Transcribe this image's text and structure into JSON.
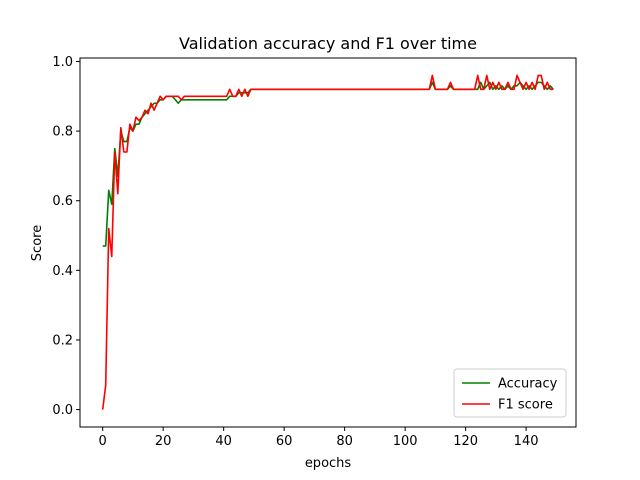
{
  "chart_data": {
    "type": "line",
    "title": "Validation accuracy and F1 over time",
    "xlabel": "epochs",
    "ylabel": "Score",
    "xlim": [
      -7.5,
      156.5
    ],
    "ylim": [
      -0.05,
      1.01
    ],
    "xticks": [
      0,
      20,
      40,
      60,
      80,
      100,
      120,
      140
    ],
    "yticks": [
      0.0,
      0.2,
      0.4,
      0.6,
      0.8,
      1.0
    ],
    "grid": false,
    "legend": "lower-right",
    "series": [
      {
        "name": "Accuracy",
        "color": "#008000",
        "points": [
          [
            0,
            0.47
          ],
          [
            1,
            0.47
          ],
          [
            2,
            0.63
          ],
          [
            3,
            0.59
          ],
          [
            4,
            0.75
          ],
          [
            5,
            0.67
          ],
          [
            6,
            0.8
          ],
          [
            7,
            0.77
          ],
          [
            8,
            0.77
          ],
          [
            9,
            0.81
          ],
          [
            10,
            0.8
          ],
          [
            11,
            0.82
          ],
          [
            12,
            0.82
          ],
          [
            13,
            0.84
          ],
          [
            14,
            0.85
          ],
          [
            15,
            0.86
          ],
          [
            16,
            0.87
          ],
          [
            17,
            0.88
          ],
          [
            18,
            0.88
          ],
          [
            19,
            0.89
          ],
          [
            20,
            0.89
          ],
          [
            21,
            0.9
          ],
          [
            22,
            0.9
          ],
          [
            23,
            0.9
          ],
          [
            24,
            0.89
          ],
          [
            25,
            0.88
          ],
          [
            26,
            0.89
          ],
          [
            27,
            0.89
          ],
          [
            28,
            0.89
          ],
          [
            30,
            0.89
          ],
          [
            35,
            0.89
          ],
          [
            40,
            0.89
          ],
          [
            41,
            0.89
          ],
          [
            42,
            0.9
          ],
          [
            43,
            0.9
          ],
          [
            44,
            0.9
          ],
          [
            45,
            0.91
          ],
          [
            46,
            0.91
          ],
          [
            47,
            0.91
          ],
          [
            48,
            0.91
          ],
          [
            49,
            0.92
          ],
          [
            50,
            0.92
          ],
          [
            60,
            0.92
          ],
          [
            80,
            0.92
          ],
          [
            100,
            0.92
          ],
          [
            107,
            0.92
          ],
          [
            108,
            0.92
          ],
          [
            109,
            0.94
          ],
          [
            110,
            0.92
          ],
          [
            113,
            0.92
          ],
          [
            114,
            0.92
          ],
          [
            115,
            0.93
          ],
          [
            116,
            0.92
          ],
          [
            120,
            0.92
          ],
          [
            123,
            0.92
          ],
          [
            124,
            0.92
          ],
          [
            125,
            0.94
          ],
          [
            126,
            0.92
          ],
          [
            127,
            0.93
          ],
          [
            128,
            0.94
          ],
          [
            129,
            0.92
          ],
          [
            130,
            0.93
          ],
          [
            131,
            0.92
          ],
          [
            132,
            0.93
          ],
          [
            133,
            0.92
          ],
          [
            134,
            0.93
          ],
          [
            135,
            0.92
          ],
          [
            136,
            0.93
          ],
          [
            137,
            0.93
          ],
          [
            138,
            0.94
          ],
          [
            139,
            0.93
          ],
          [
            140,
            0.92
          ],
          [
            141,
            0.93
          ],
          [
            142,
            0.92
          ],
          [
            143,
            0.93
          ],
          [
            144,
            0.94
          ],
          [
            145,
            0.94
          ],
          [
            146,
            0.93
          ],
          [
            147,
            0.92
          ],
          [
            148,
            0.93
          ],
          [
            149,
            0.92
          ]
        ]
      },
      {
        "name": "F1 score",
        "color": "#ff0000",
        "points": [
          [
            0,
            0.0
          ],
          [
            1,
            0.07
          ],
          [
            2,
            0.52
          ],
          [
            3,
            0.44
          ],
          [
            4,
            0.74
          ],
          [
            5,
            0.62
          ],
          [
            6,
            0.81
          ],
          [
            7,
            0.74
          ],
          [
            8,
            0.74
          ],
          [
            9,
            0.82
          ],
          [
            10,
            0.8
          ],
          [
            11,
            0.84
          ],
          [
            12,
            0.83
          ],
          [
            13,
            0.84
          ],
          [
            14,
            0.86
          ],
          [
            15,
            0.85
          ],
          [
            16,
            0.88
          ],
          [
            17,
            0.86
          ],
          [
            18,
            0.88
          ],
          [
            19,
            0.9
          ],
          [
            20,
            0.89
          ],
          [
            21,
            0.9
          ],
          [
            22,
            0.9
          ],
          [
            23,
            0.9
          ],
          [
            24,
            0.9
          ],
          [
            25,
            0.9
          ],
          [
            26,
            0.89
          ],
          [
            27,
            0.9
          ],
          [
            28,
            0.9
          ],
          [
            30,
            0.9
          ],
          [
            35,
            0.9
          ],
          [
            40,
            0.9
          ],
          [
            41,
            0.9
          ],
          [
            42,
            0.92
          ],
          [
            43,
            0.9
          ],
          [
            44,
            0.9
          ],
          [
            45,
            0.92
          ],
          [
            46,
            0.9
          ],
          [
            47,
            0.92
          ],
          [
            48,
            0.9
          ],
          [
            49,
            0.92
          ],
          [
            50,
            0.92
          ],
          [
            60,
            0.92
          ],
          [
            80,
            0.92
          ],
          [
            100,
            0.92
          ],
          [
            107,
            0.92
          ],
          [
            108,
            0.92
          ],
          [
            109,
            0.96
          ],
          [
            110,
            0.92
          ],
          [
            113,
            0.92
          ],
          [
            114,
            0.92
          ],
          [
            115,
            0.94
          ],
          [
            116,
            0.92
          ],
          [
            120,
            0.92
          ],
          [
            123,
            0.92
          ],
          [
            124,
            0.96
          ],
          [
            125,
            0.92
          ],
          [
            126,
            0.92
          ],
          [
            127,
            0.96
          ],
          [
            128,
            0.92
          ],
          [
            129,
            0.94
          ],
          [
            130,
            0.92
          ],
          [
            131,
            0.94
          ],
          [
            132,
            0.92
          ],
          [
            133,
            0.92
          ],
          [
            134,
            0.94
          ],
          [
            135,
            0.92
          ],
          [
            136,
            0.92
          ],
          [
            137,
            0.96
          ],
          [
            138,
            0.94
          ],
          [
            139,
            0.92
          ],
          [
            140,
            0.94
          ],
          [
            141,
            0.92
          ],
          [
            142,
            0.94
          ],
          [
            143,
            0.92
          ],
          [
            144,
            0.96
          ],
          [
            145,
            0.96
          ],
          [
            146,
            0.92
          ],
          [
            147,
            0.94
          ],
          [
            148,
            0.92
          ],
          [
            149,
            0.92
          ]
        ]
      }
    ]
  }
}
